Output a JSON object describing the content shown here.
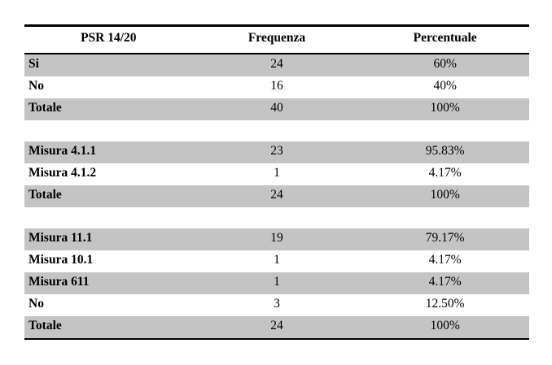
{
  "table": {
    "columns": [
      "PSR 14/20",
      "Frequenza",
      "Percentuale"
    ],
    "sections": [
      {
        "rows": [
          {
            "label": "Si",
            "frequenza": "24",
            "percentuale": "60%"
          },
          {
            "label": "No",
            "frequenza": "16",
            "percentuale": "40%"
          },
          {
            "label": "Totale",
            "frequenza": "40",
            "percentuale": "100%"
          }
        ]
      },
      {
        "rows": [
          {
            "label": "Misura 4.1.1",
            "frequenza": "23",
            "percentuale": "95.83%"
          },
          {
            "label": "Misura 4.1.2",
            "frequenza": "1",
            "percentuale": "4.17%"
          },
          {
            "label": "Totale",
            "frequenza": "24",
            "percentuale": "100%"
          }
        ]
      },
      {
        "rows": [
          {
            "label": "Misura 11.1",
            "frequenza": "19",
            "percentuale": "79.17%"
          },
          {
            "label": "Misura 10.1",
            "frequenza": "1",
            "percentuale": "4.17%"
          },
          {
            "label": "Misura 611",
            "frequenza": "1",
            "percentuale": "4.17%"
          },
          {
            "label": "No",
            "frequenza": "3",
            "percentuale": "12.50%"
          },
          {
            "label": "Totale",
            "frequenza": "24",
            "percentuale": "100%"
          }
        ]
      }
    ],
    "colors": {
      "row_shaded": "#c4c4c4",
      "border": "#000000",
      "background": "#ffffff"
    }
  }
}
